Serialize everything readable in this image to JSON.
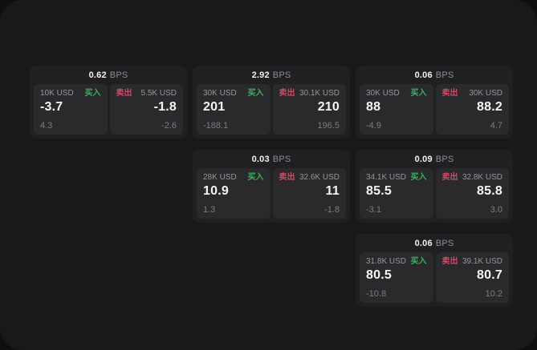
{
  "labels": {
    "bps_unit": "BPS",
    "buy": "买入",
    "sell": "卖出"
  },
  "colors": {
    "buy_green": "#3cb15f",
    "sell_red": "#cf4a66",
    "surface": "#19191b",
    "card": "#202022",
    "panel": "#2a2a2c"
  },
  "cards": [
    {
      "bps": "0.62",
      "buy": {
        "amount": "10K USD",
        "price": "-3.7",
        "sub": "4.3"
      },
      "sell": {
        "amount": "5.5K USD",
        "price": "-1.8",
        "sub": "-2.6"
      }
    },
    {
      "bps": "2.92",
      "buy": {
        "amount": "30K USD",
        "price": "201",
        "sub": "-188.1"
      },
      "sell": {
        "amount": "30.1K USD",
        "price": "210",
        "sub": "196.5"
      }
    },
    {
      "bps": "0.06",
      "buy": {
        "amount": "30K USD",
        "price": "88",
        "sub": "-4.9"
      },
      "sell": {
        "amount": "30K USD",
        "price": "88.2",
        "sub": "4.7"
      }
    },
    {
      "bps": "0.03",
      "buy": {
        "amount": "28K USD",
        "price": "10.9",
        "sub": "1.3"
      },
      "sell": {
        "amount": "32.6K USD",
        "price": "11",
        "sub": "-1.8"
      }
    },
    {
      "bps": "0.09",
      "buy": {
        "amount": "34.1K USD",
        "price": "85.5",
        "sub": "-3.1"
      },
      "sell": {
        "amount": "32.8K USD",
        "price": "85.8",
        "sub": "3.0"
      }
    },
    {
      "bps": "0.06",
      "buy": {
        "amount": "31.8K USD",
        "price": "80.5",
        "sub": "-10.8"
      },
      "sell": {
        "amount": "39.1K USD",
        "price": "80.7",
        "sub": "10.2"
      }
    }
  ]
}
